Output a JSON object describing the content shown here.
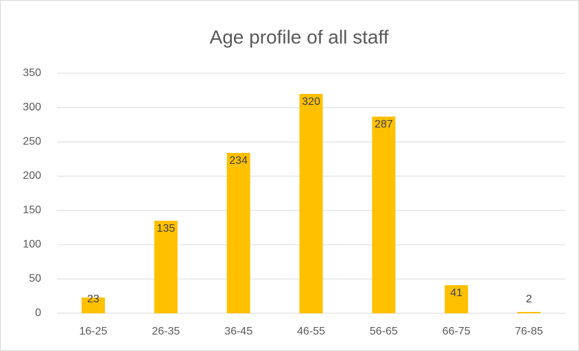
{
  "chart_data": {
    "type": "bar",
    "title": "Age profile of all staff",
    "categories": [
      "16-25",
      "26-35",
      "36-45",
      "46-55",
      "56-65",
      "66-75",
      "76-85"
    ],
    "values": [
      23,
      135,
      234,
      320,
      287,
      41,
      2
    ],
    "color": "#ffc000",
    "ylim": [
      0,
      350
    ],
    "yticks": [
      0,
      50,
      100,
      150,
      200,
      250,
      300,
      350
    ],
    "grid": true
  }
}
